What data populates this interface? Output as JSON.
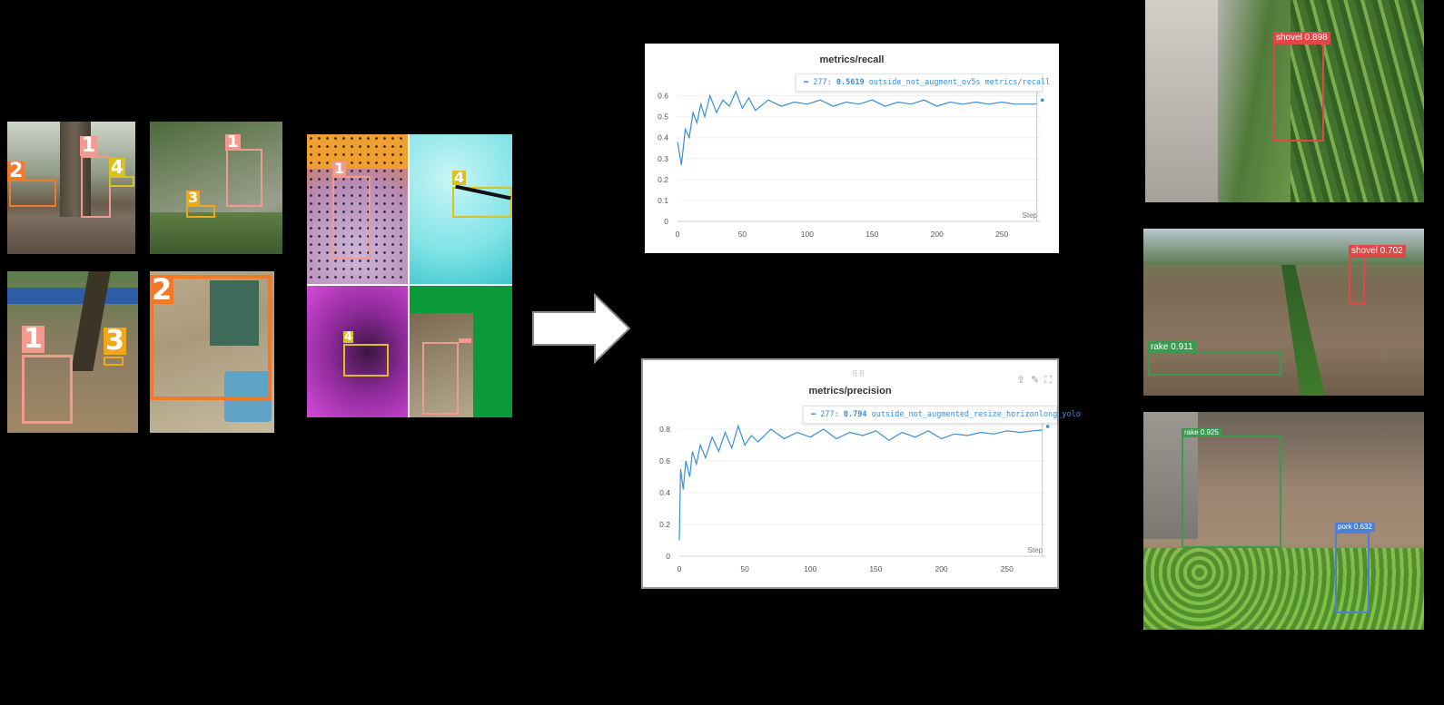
{
  "labels": {
    "l1": "1",
    "l2": "2",
    "l3": "3",
    "l4": "4"
  },
  "recall": {
    "title": "metrics/recall",
    "tooltip_step": "277:",
    "tooltip_value": "0.5619",
    "tooltip_run": "outside_not_augment_ov5s metrics/recall",
    "step_label": "Step",
    "color": "#3a8fd6"
  },
  "precision": {
    "title": "metrics/precision",
    "tooltip_step": "277:",
    "tooltip_value": "0.794",
    "tooltip_run": "outside_not_augmented_resize_horizonlong_yolo",
    "step_label": "Step",
    "color": "#3a8fd6"
  },
  "chart_data": [
    {
      "type": "line",
      "title": "metrics/recall",
      "xlabel": "Step",
      "ylabel": "",
      "xlim": [
        0,
        280
      ],
      "ylim": [
        0,
        0.65
      ],
      "xticks": [
        0,
        50,
        100,
        150,
        200,
        250
      ],
      "yticks": [
        0,
        0.1,
        0.2,
        0.3,
        0.4,
        0.5,
        0.6
      ],
      "series": [
        {
          "name": "outside_not_augment_ov5s metrics/recall",
          "x": [
            0,
            3,
            6,
            9,
            12,
            15,
            18,
            21,
            25,
            30,
            35,
            40,
            45,
            50,
            55,
            60,
            70,
            80,
            90,
            100,
            110,
            120,
            130,
            140,
            150,
            160,
            170,
            180,
            190,
            200,
            210,
            220,
            230,
            240,
            250,
            260,
            270,
            275,
            277
          ],
          "y": [
            0.38,
            0.27,
            0.44,
            0.4,
            0.52,
            0.47,
            0.56,
            0.5,
            0.6,
            0.52,
            0.58,
            0.55,
            0.62,
            0.54,
            0.59,
            0.53,
            0.58,
            0.55,
            0.57,
            0.56,
            0.58,
            0.55,
            0.57,
            0.56,
            0.58,
            0.55,
            0.57,
            0.56,
            0.58,
            0.55,
            0.57,
            0.56,
            0.57,
            0.56,
            0.57,
            0.56,
            0.56,
            0.56,
            0.5619
          ]
        }
      ]
    },
    {
      "type": "line",
      "title": "metrics/precision",
      "xlabel": "Step",
      "ylabel": "",
      "xlim": [
        0,
        280
      ],
      "ylim": [
        0,
        0.88
      ],
      "xticks": [
        0,
        50,
        100,
        150,
        200,
        250
      ],
      "yticks": [
        0,
        0.2,
        0.4,
        0.6,
        0.8
      ],
      "series": [
        {
          "name": "outside_not_augmented_resize_horizonlong_yolo",
          "x": [
            0,
            1,
            3,
            5,
            8,
            10,
            13,
            16,
            20,
            25,
            30,
            35,
            40,
            45,
            50,
            55,
            60,
            70,
            80,
            90,
            100,
            110,
            120,
            130,
            140,
            150,
            160,
            170,
            180,
            190,
            200,
            210,
            220,
            230,
            240,
            250,
            260,
            270,
            277
          ],
          "y": [
            0.1,
            0.55,
            0.42,
            0.6,
            0.5,
            0.66,
            0.58,
            0.7,
            0.62,
            0.75,
            0.66,
            0.78,
            0.68,
            0.82,
            0.7,
            0.76,
            0.72,
            0.8,
            0.74,
            0.78,
            0.75,
            0.8,
            0.74,
            0.78,
            0.76,
            0.79,
            0.73,
            0.78,
            0.75,
            0.79,
            0.74,
            0.77,
            0.76,
            0.78,
            0.77,
            0.79,
            0.78,
            0.79,
            0.794
          ]
        }
      ]
    }
  ],
  "detections": {
    "d1_label": "shovel 0.898",
    "d2_label": "shovel 0.702",
    "d3_label": "rake 0.911",
    "d4_label": "rake 0.925",
    "d5_label": "pork 0.632"
  },
  "colors": {
    "red_box": "#e04848",
    "green_box": "#3a9a52",
    "blue_box": "#4a80d6",
    "salmon": "#f39a8f",
    "orange": "#f07a2a",
    "yellow": "#d9c21f",
    "gold": "#f0a81a"
  }
}
